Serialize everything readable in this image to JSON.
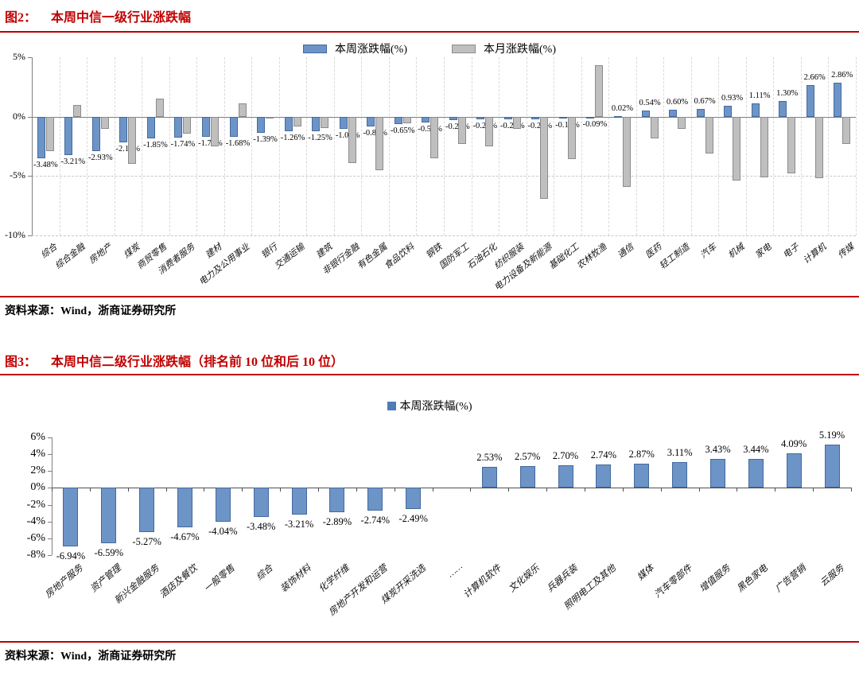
{
  "page": {
    "fig2": {
      "label": "图2：",
      "title": "本周中信一级行业涨跌幅",
      "source": "资料来源：Wind，浙商证券研究所"
    },
    "fig3": {
      "label": "图3：",
      "title": "本周中信二级行业涨跌幅（排名前 10 位和后 10 位）",
      "source": "资料来源：Wind，浙商证券研究所"
    },
    "colors": {
      "title_red": "#C00000",
      "rule_red": "#C00000",
      "bar_blue": "#6D94C6",
      "bar_blue_border": "#44699E",
      "bar_gray": "#BFBFBF",
      "bar_gray_border": "#8C8C8C"
    }
  },
  "chart_data": [
    {
      "type": "bar",
      "title": "本周中信一级行业涨跌幅",
      "legend_position": "top",
      "grid": "vertical-dashed",
      "ylim": [
        -10,
        5
      ],
      "yticks": [
        {
          "v": 5,
          "label": "5%"
        },
        {
          "v": 0,
          "label": "0%"
        },
        {
          "v": -5,
          "label": "-5%"
        },
        {
          "v": -10,
          "label": "-10%"
        }
      ],
      "categories": [
        "综合",
        "综合金融",
        "房地产",
        "煤炭",
        "商贸零售",
        "消费者服务",
        "建材",
        "电力及公用事业",
        "银行",
        "交通运输",
        "建筑",
        "非银行金融",
        "有色金属",
        "食品饮料",
        "钢铁",
        "国防军工",
        "石油石化",
        "纺织服装",
        "电力设备及新能源",
        "基础化工",
        "农林牧渔",
        "通信",
        "医药",
        "轻工制造",
        "汽车",
        "机械",
        "家电",
        "电子",
        "计算机",
        "传媒"
      ],
      "series": [
        {
          "name": "本周涨跌幅(%)",
          "color": "#6D94C6",
          "border": "#44699E",
          "labeled": true,
          "values": [
            -3.48,
            -3.21,
            -2.93,
            -2.19,
            -1.85,
            -1.74,
            -1.72,
            -1.68,
            -1.39,
            -1.26,
            -1.25,
            -1.01,
            -0.85,
            -0.65,
            -0.52,
            -0.27,
            -0.25,
            -0.24,
            -0.23,
            -0.18,
            -0.09,
            0.02,
            0.54,
            0.6,
            0.67,
            0.93,
            1.11,
            1.3,
            2.66,
            2.86
          ]
        },
        {
          "name": "本月涨跌幅(%)",
          "color": "#BFBFBF",
          "border": "#8C8C8C",
          "labeled": false,
          "values": [
            -2.9,
            1.0,
            -1.0,
            -4.0,
            1.5,
            -1.4,
            -2.5,
            1.1,
            -0.1,
            -0.85,
            -0.95,
            -3.9,
            -4.5,
            -0.55,
            -3.5,
            -2.3,
            -2.5,
            -1.0,
            -6.9,
            -3.6,
            4.3,
            -5.9,
            -1.8,
            -1.0,
            -3.1,
            -5.4,
            -5.1,
            -4.8,
            -5.2,
            -2.3
          ]
        }
      ]
    },
    {
      "type": "bar",
      "title": "本周中信二级行业涨跌幅（排名前 10 位和后 10 位）",
      "legend_position": "top",
      "grid": "off",
      "ylim": [
        -8,
        6
      ],
      "yticks": [
        {
          "v": 6,
          "label": "6%"
        },
        {
          "v": 4,
          "label": "4%"
        },
        {
          "v": 2,
          "label": "2%"
        },
        {
          "v": 0,
          "label": "0%"
        },
        {
          "v": -2,
          "label": "-2%"
        },
        {
          "v": -4,
          "label": "-4%"
        },
        {
          "v": -6,
          "label": "-6%"
        },
        {
          "v": -8,
          "label": "-8%"
        }
      ],
      "categories": [
        "房地产服务",
        "资产管理",
        "新兴金融服务",
        "酒店及餐饮",
        "一般零售",
        "综合",
        "装饰材料",
        "化学纤维",
        "房地产开发和运营",
        "煤炭开采洗选",
        "……",
        "计算机软件",
        "文化娱乐",
        "兵器兵装",
        "照明电工及其他",
        "媒体",
        "汽车零部件",
        "增值服务",
        "黑色家电",
        "广告营销",
        "云服务"
      ],
      "series": [
        {
          "name": "本周涨跌幅(%)",
          "color": "#6D94C6",
          "border": "#44699E",
          "labeled": true,
          "values": [
            -6.94,
            -6.59,
            -5.27,
            -4.67,
            -4.04,
            -3.48,
            -3.21,
            -2.89,
            -2.74,
            -2.49,
            null,
            2.53,
            2.57,
            2.7,
            2.74,
            2.87,
            3.11,
            3.43,
            3.44,
            4.09,
            5.19
          ]
        }
      ]
    }
  ]
}
